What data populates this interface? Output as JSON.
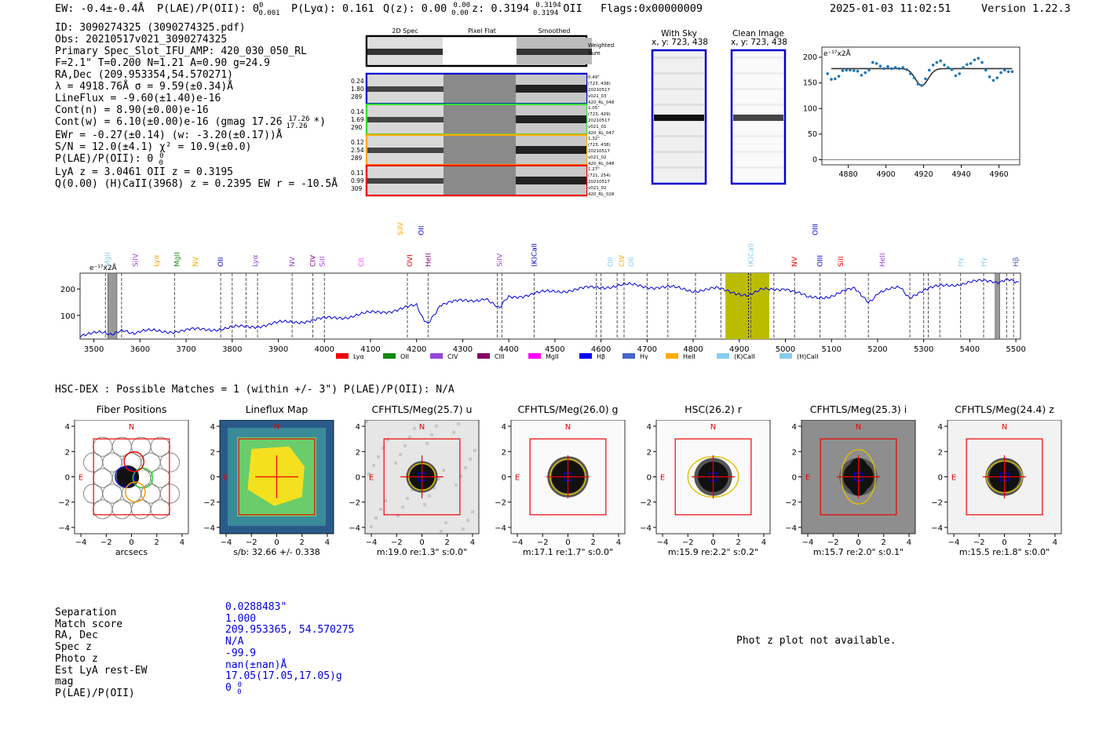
{
  "header": {
    "ew": "EW: -0.4±-0.4Å",
    "plae": "P(LAE)/P(OII): 0",
    "plae_sup": "0",
    "plae_sub": "0.001",
    "plya": "P(Lyα): 0.161",
    "qz": "Q(z): 0.00",
    "qz_sup": "0.00",
    "qz_sub": "0.00",
    "z": "z: 0.3194",
    "z_sup": "0.3194",
    "z_sub": "0.3194",
    "z_line": "OII",
    "flags": "Flags:0x00000009",
    "timestamp": "2025-01-03 11:02:51",
    "version": "Version 1.22.3"
  },
  "info_lines": [
    "ID: 3090274325 (3090274325.pdf)",
    "Obs: 20210517v021_3090274325",
    "Primary Spec_Slot_IFU_AMP: 420_030_050_RL",
    "F=2.1\"  T=0.200  N=1.21  A=0.90  g=24.9",
    "RA,Dec (209.953354,54.570271)",
    "λ = 4918.76Å  σ = 9.59(±0.34)Å",
    "LineFlux = -9.60(±1.40)e-16",
    "Cont(n) = 8.90(±0.00)e-16",
    "Cont(w) = 6.10(±0.00)e-16 (gmag 17.26",
    "EWr = -0.27(±0.14) (w: -3.20(±0.17))Å",
    "S/N = 12.0(±4.1)  χ² = 10.9(±0.0)",
    "P(LAE)/P(OII): 0",
    "LyA z = 3.0461  OII z = 0.3195",
    "Q(0.00) (H)CaII(3968) z = 0.2395  EW r = -10.5Å"
  ],
  "info_extra": {
    "gmag_sup": "17.26",
    "gmag_sub": "17.26",
    "gmag_close": " *)",
    "plae_sup": "0",
    "plae_sub": "0"
  },
  "spec2d": {
    "col_titles": [
      "2D Spec",
      "Pixel Flat",
      "Smoothed"
    ],
    "weighted_label": "Weighted Sum",
    "rows": [
      {
        "color": "#0000cc",
        "left": [
          "0.24",
          "1.80",
          "289"
        ],
        "right": [
          "0.49\"",
          "(723, 438)",
          "20210517",
          "v021_03",
          "420_RL_048"
        ]
      },
      {
        "color": "#33dd33",
        "left": [
          "0.14",
          "1.69",
          "290"
        ],
        "right": [
          "1.05\"",
          "(723, 429)",
          "20210517",
          "v021_01",
          "420_RL_047"
        ]
      },
      {
        "color": "#ffaa00",
        "left": [
          "0.12",
          "2.54",
          "289"
        ],
        "right": [
          "1.32\"",
          "(723, 438)",
          "20210517",
          "v021_02",
          "420_RL_048"
        ]
      },
      {
        "color": "#ee0000",
        "left": [
          "0.11",
          "0.99",
          "309"
        ],
        "right": [
          "1.27\"",
          "(721, 254)",
          "20210517",
          "v021_02",
          "420_RL_028"
        ]
      }
    ]
  },
  "sky_panels": {
    "with_sky": {
      "title": "With Sky",
      "coords": "x, y: 723, 438"
    },
    "clean": {
      "title": "Clean Image",
      "coords": "x, y: 723, 438"
    }
  },
  "chart_data": [
    {
      "type": "scatter",
      "title": "",
      "scale_label": "e⁻¹⁷x2Å",
      "xlim": [
        4866,
        4971
      ],
      "ylim": [
        -10,
        220
      ],
      "xticks": [
        4880,
        4900,
        4920,
        4940,
        4960
      ],
      "yticks": [
        0,
        50,
        100,
        150,
        200
      ],
      "x": [
        4869,
        4871,
        4873,
        4875,
        4877,
        4879,
        4881,
        4883,
        4885,
        4887,
        4889,
        4891,
        4893,
        4895,
        4897,
        4899,
        4901,
        4903,
        4905,
        4907,
        4909,
        4911,
        4913,
        4915,
        4917,
        4919,
        4921,
        4923,
        4925,
        4927,
        4929,
        4931,
        4933,
        4935,
        4937,
        4939,
        4941,
        4943,
        4945,
        4947,
        4949,
        4951,
        4953,
        4955,
        4957,
        4959,
        4961,
        4963,
        4965,
        4967
      ],
      "y": [
        168,
        157,
        158,
        163,
        174,
        175,
        175,
        174,
        173,
        165,
        170,
        175,
        190,
        188,
        183,
        178,
        182,
        178,
        180,
        178,
        180,
        176,
        168,
        160,
        148,
        145,
        158,
        175,
        185,
        190,
        193,
        185,
        180,
        176,
        164,
        168,
        180,
        186,
        188,
        195,
        198,
        190,
        175,
        162,
        155,
        160,
        170,
        175,
        172,
        172
      ],
      "model": {
        "continuum": 178,
        "center": 4919,
        "depth": 33,
        "sigma": 3.4,
        "xrange": [
          4871,
          4967
        ]
      }
    },
    {
      "type": "line",
      "title": "",
      "scale_label": "e⁻¹⁷x2Å",
      "xlim": [
        3470,
        5510
      ],
      "ylim": [
        10,
        260
      ],
      "xticks": [
        3500,
        3600,
        3700,
        3800,
        3900,
        4000,
        4100,
        4200,
        4300,
        4400,
        4500,
        4600,
        4700,
        4800,
        4900,
        5000,
        5100,
        5200,
        5300,
        5400,
        5500
      ],
      "yticks": [
        100,
        200
      ],
      "x": [
        3470,
        3520,
        3560,
        3600,
        3650,
        3700,
        3750,
        3800,
        3850,
        3900,
        3950,
        4000,
        4050,
        4100,
        4150,
        4200,
        4225,
        4250,
        4300,
        4350,
        4380,
        4400,
        4450,
        4500,
        4550,
        4600,
        4650,
        4700,
        4750,
        4800,
        4850,
        4900,
        4920,
        4950,
        5000,
        5050,
        5100,
        5150,
        5180,
        5200,
        5250,
        5270,
        5300,
        5350,
        5400,
        5450,
        5510
      ],
      "y": [
        26,
        32,
        36,
        38,
        40,
        42,
        48,
        52,
        60,
        70,
        78,
        86,
        96,
        108,
        120,
        135,
        62,
        140,
        155,
        165,
        125,
        170,
        180,
        192,
        198,
        208,
        215,
        210,
        205,
        195,
        200,
        185,
        170,
        195,
        205,
        165,
        175,
        200,
        150,
        185,
        205,
        170,
        195,
        215,
        225,
        230,
        230
      ],
      "highlight_band": [
        4870,
        4965
      ],
      "gray_bands": [
        [
          3530,
          3550
        ],
        [
          5455,
          5465
        ]
      ],
      "line_markers": [
        {
          "label": "MgII",
          "x": 3530,
          "color": "#88ccee",
          "level": 0
        },
        {
          "label": "SiIV",
          "x": 3590,
          "color": "#9944dd",
          "level": 0
        },
        {
          "label": "Lyα",
          "x": 3635,
          "color": "#ffaa00",
          "level": 0
        },
        {
          "label": "MgII",
          "x": 3680,
          "color": "#228822",
          "level": 0
        },
        {
          "label": "NV",
          "x": 3720,
          "color": "#ffaa00",
          "level": 0
        },
        {
          "label": "OII",
          "x": 3775,
          "color": "#0000cc",
          "level": 0
        },
        {
          "label": "Lyα",
          "x": 3850,
          "color": "#9944dd",
          "level": 0
        },
        {
          "label": "NV",
          "x": 3930,
          "color": "#9944dd",
          "level": 0
        },
        {
          "label": "CIV",
          "x": 3975,
          "color": "#880088",
          "level": 0
        },
        {
          "label": "SiII",
          "x": 3995,
          "color": "#9944dd",
          "level": 0
        },
        {
          "label": "CII",
          "x": 4080,
          "color": "#ff44ff",
          "level": 0
        },
        {
          "label": "SiIV",
          "x": 4165,
          "color": "#ffaa00",
          "level": 1
        },
        {
          "label": "OII",
          "x": 4210,
          "color": "#0000cc",
          "level": 1
        },
        {
          "label": "OVI",
          "x": 4185,
          "color": "#ee0000",
          "level": 0
        },
        {
          "label": "HeII",
          "x": 4225,
          "color": "#880088",
          "level": 0
        },
        {
          "label": "SiIV",
          "x": 4380,
          "color": "#9944dd",
          "level": 0
        },
        {
          "label": "(K)CaII",
          "x": 4455,
          "color": "#0000cc",
          "level": 0
        },
        {
          "label": "OII",
          "x": 4620,
          "color": "#88ccee",
          "level": 0
        },
        {
          "label": "CIV",
          "x": 4645,
          "color": "#ffaa00",
          "level": 0
        },
        {
          "label": "OII",
          "x": 4665,
          "color": "#88ccee",
          "level": 0
        },
        {
          "label": "(K)CaII",
          "x": 4925,
          "color": "#88ccee",
          "level": 0
        },
        {
          "label": "OIII",
          "x": 5065,
          "color": "#0000cc",
          "level": 1
        },
        {
          "label": "NV",
          "x": 5020,
          "color": "#ee0000",
          "level": 0
        },
        {
          "label": "OIII",
          "x": 5075,
          "color": "#0000cc",
          "level": 0
        },
        {
          "label": "SiII",
          "x": 5120,
          "color": "#ee0000",
          "level": 0
        },
        {
          "label": "HeII",
          "x": 5210,
          "color": "#9944dd",
          "level": 0
        },
        {
          "label": "Hγ",
          "x": 5380,
          "color": "#88ccee",
          "level": 0
        },
        {
          "label": "Hγ",
          "x": 5430,
          "color": "#88ccee",
          "level": 0
        },
        {
          "label": "Hβ",
          "x": 5500,
          "color": "#4466cc",
          "level": 0
        }
      ],
      "dashed_x": [
        3525,
        3560,
        3675,
        3775,
        3800,
        3830,
        3855,
        3930,
        3975,
        4000,
        4180,
        4225,
        4375,
        4385,
        4455,
        4590,
        4600,
        4635,
        4650,
        4700,
        4745,
        4805,
        4860,
        4925,
        4975,
        5020,
        5075,
        5130,
        5180,
        5270,
        5300,
        5310,
        5335,
        5380,
        5430,
        5480,
        5495
      ],
      "legend": [
        {
          "label": "Lyα",
          "color": "#ee0000"
        },
        {
          "label": "OII",
          "color": "#118811"
        },
        {
          "label": "CIV",
          "color": "#9944dd"
        },
        {
          "label": "CIII",
          "color": "#880066"
        },
        {
          "label": "MgII",
          "color": "#ff00ff"
        },
        {
          "label": "Hβ",
          "color": "#0000ee"
        },
        {
          "label": "Hγ",
          "color": "#4466cc"
        },
        {
          "label": "HeII",
          "color": "#ffaa00"
        },
        {
          "label": "(K)CaII",
          "color": "#88ccee"
        },
        {
          "label": "(H)CaII",
          "color": "#88ccee"
        }
      ]
    }
  ],
  "hsc": {
    "summary": "HSC-DEX : Possible Matches = 1 (within +/- 3\")  P(LAE)/P(OII): N/A",
    "axis_ticks": [
      "−4",
      "−2",
      "0",
      "2",
      "4"
    ],
    "cutouts": [
      {
        "title": "Fiber Positions",
        "foot": "arcsecs",
        "kind": "fibers"
      },
      {
        "title": "Lineflux Map",
        "foot": "s/b: 32.66 +/- 0.338",
        "kind": "lineflux"
      },
      {
        "title": "CFHTLS/Meg(25.7) u",
        "foot": "m:19.0  re:1.3\"  s:0.0\"",
        "kind": "u"
      },
      {
        "title": "CFHTLS/Meg(26.0) g",
        "foot": "m:17.1  re:1.7\"  s:0.0\"",
        "kind": "g"
      },
      {
        "title": "HSC(26.2) r",
        "foot": "m:15.9  re:2.2\"  s:0.2\"",
        "kind": "r"
      },
      {
        "title": "CFHTLS/Meg(25.3) i",
        "foot": "m:15.7  re:2.0\"  s:0.1\"",
        "kind": "i"
      },
      {
        "title": "CFHTLS/Meg(24.4) z",
        "foot": "m:15.5  re:1.8\"  s:0.0\"",
        "kind": "z"
      }
    ],
    "labels": {
      "n": "N",
      "e": "E"
    }
  },
  "match_table": {
    "labels": [
      "Separation",
      "Match score",
      "RA, Dec",
      "Spec z",
      "Photo z",
      "Est LyA rest-EW",
      "mag",
      "P(LAE)/P(OII)"
    ],
    "values": [
      "0.0288483\"",
      "1.000",
      "209.953365, 54.570275",
      "N/A",
      "-99.9",
      "nan(±nan)Å",
      "17.05(17.05,17.05)g",
      "0"
    ],
    "plae_sup": "0",
    "plae_sub": "0"
  },
  "photz_note": "Phot z plot not available."
}
